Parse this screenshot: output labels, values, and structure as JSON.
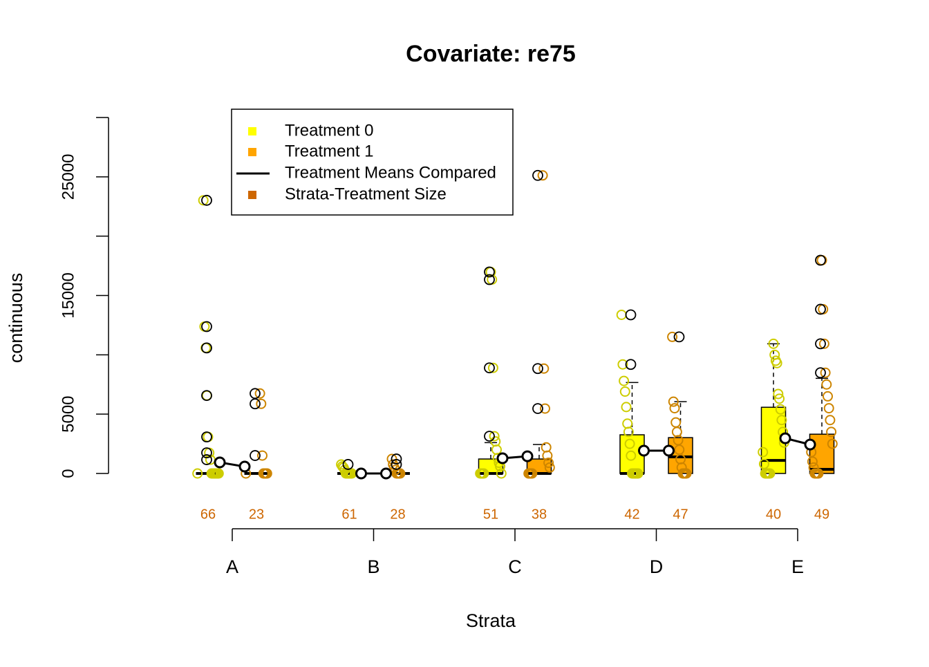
{
  "chart_data": {
    "type": "strata-boxplot",
    "title": "Covariate: re75",
    "xlabel": "Strata",
    "ylabel": "continuous",
    "categories": [
      "A",
      "B",
      "C",
      "D",
      "E"
    ],
    "ylim": [
      0,
      30000
    ],
    "yticks": [
      0,
      5000,
      15000,
      25000
    ],
    "ytick_marks": [
      0,
      5000,
      10000,
      15000,
      20000,
      25000,
      30000
    ],
    "legend": "top-left",
    "mean_label": "Treatment Means Compared",
    "mean_color": "#000000",
    "size_label": "Strata-Treatment Size",
    "size_color": "#cd6600",
    "series": [
      {
        "name": "Treatment 0",
        "color": "#ffff00",
        "point_color": "#cdcd00",
        "boxes": [
          [
            0,
            0,
            0,
            0,
            0
          ],
          [
            0,
            0,
            0,
            0,
            0
          ],
          [
            0,
            0,
            0,
            1220,
            2600
          ],
          [
            0,
            0,
            0,
            3260,
            7670
          ],
          [
            0,
            0,
            1100,
            5580,
            10930
          ]
        ],
        "means": [
          930,
          0,
          1280,
          1920,
          2965
        ],
        "counts": [
          66,
          61,
          51,
          42,
          40
        ],
        "points": [
          [
            0,
            0,
            0,
            0,
            0,
            0,
            0,
            0,
            1160,
            1740,
            3080,
            6570,
            10580,
            12380,
            23020
          ],
          [
            0,
            0,
            0,
            0,
            0,
            0,
            300,
            500,
            600,
            760
          ],
          [
            0,
            0,
            0,
            0,
            0,
            600,
            900,
            1300,
            2000,
            2700,
            3140,
            8900,
            16340,
            16980
          ],
          [
            0,
            0,
            0,
            0,
            0,
            0,
            1500,
            2500,
            3500,
            4200,
            5600,
            6900,
            7800,
            9190,
            13370
          ],
          [
            0,
            0,
            0,
            0,
            0,
            800,
            1800,
            2600,
            3500,
            4500,
            5400,
            6300,
            6700,
            9300,
            9500,
            10000,
            10930
          ]
        ],
        "outliers": [
          [
            1160,
            1740,
            3080,
            6570,
            10580,
            12380,
            23020
          ],
          [
            760
          ],
          [
            3140,
            8900,
            16340,
            16980
          ],
          [
            9190,
            13370
          ],
          []
        ]
      },
      {
        "name": "Treatment 1",
        "color": "#ffa500",
        "point_color": "#cd8500",
        "boxes": [
          [
            0,
            0,
            0,
            0,
            0
          ],
          [
            0,
            0,
            0,
            0,
            0
          ],
          [
            0,
            0,
            0,
            1220,
            2440
          ],
          [
            0,
            0,
            1400,
            3020,
            6050
          ],
          [
            0,
            0,
            350,
            3310,
            8020
          ]
        ],
        "means": [
          580,
          0,
          1450,
          1920,
          2440
        ],
        "counts": [
          23,
          28,
          38,
          47,
          49
        ],
        "points": [
          [
            0,
            0,
            0,
            0,
            0,
            1510,
            5870,
            6740
          ],
          [
            0,
            0,
            0,
            0,
            300,
            500,
            760,
            1220
          ],
          [
            0,
            0,
            0,
            0,
            500,
            900,
            1500,
            2200,
            5470,
            8840,
            25120
          ],
          [
            0,
            0,
            0,
            0,
            500,
            1200,
            2000,
            2800,
            3500,
            4300,
            5500,
            6050,
            11510
          ],
          [
            0,
            0,
            0,
            0,
            500,
            1000,
            1800,
            2500,
            3500,
            4500,
            5500,
            6500,
            7500,
            8490,
            10930,
            13840,
            17970
          ]
        ],
        "outliers": [
          [
            1510,
            5870,
            6740
          ],
          [
            760,
            1220
          ],
          [
            5470,
            8840,
            25120
          ],
          [
            11510
          ],
          [
            8490,
            10930,
            13840,
            17970
          ]
        ]
      }
    ]
  }
}
